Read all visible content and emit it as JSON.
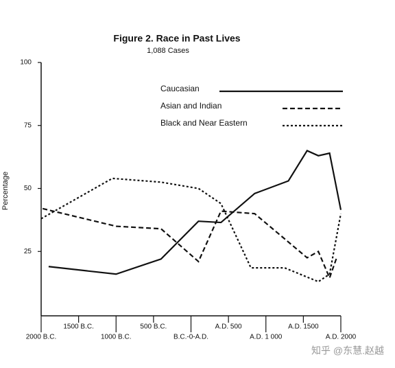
{
  "chart_data": {
    "type": "line",
    "title": "Figure 2.  Race in Past Lives",
    "subtitle": "1,088 Cases",
    "ylabel": "Percentage",
    "watermark": "知乎 @东慧.赵越",
    "xlim": [
      -2000,
      2000
    ],
    "xticks": [
      {
        "value": -2000,
        "label": "2000 B.C."
      },
      {
        "value": -1500,
        "label": "1500 B.C."
      },
      {
        "value": -1000,
        "label": "1000 B.C."
      },
      {
        "value": -500,
        "label": "500 B.C."
      },
      {
        "value": 0,
        "label": "B.C.-0-A.D."
      },
      {
        "value": 500,
        "label": "A.D. 500"
      },
      {
        "value": 1000,
        "label": "A.D. 1 000"
      },
      {
        "value": 1500,
        "label": "A.D. 1500"
      },
      {
        "value": 2000,
        "label": "A.D. 2000"
      }
    ],
    "ylim": [
      0,
      100
    ],
    "yticks": [
      25,
      50,
      75,
      100
    ],
    "legend": "upper right",
    "series": [
      {
        "name": "Caucasian",
        "color": "#111111",
        "style": "solid",
        "x": [
          -1900,
          -1000,
          -400,
          100,
          400,
          850,
          1300,
          1550,
          1700,
          1850,
          2000
        ],
        "values": [
          19,
          16,
          22,
          37,
          36.5,
          48,
          53,
          65,
          63,
          64,
          41.5
        ]
      },
      {
        "name": "Asian and Indian",
        "color": "#111111",
        "style": "dashed",
        "x": [
          -1980,
          -1000,
          -400,
          100,
          400,
          850,
          1550,
          1700,
          1850,
          1950
        ],
        "values": [
          42,
          35,
          34,
          21,
          41,
          40,
          22.5,
          25,
          14.5,
          23
        ]
      },
      {
        "name": "Black and Near Eastern",
        "color": "#111111",
        "style": "dotted",
        "x": [
          -2000,
          -1050,
          -400,
          100,
          400,
          800,
          1250,
          1700,
          1850,
          2000
        ],
        "values": [
          38,
          54,
          52.5,
          50,
          44,
          18.5,
          18.5,
          13,
          16,
          40
        ]
      }
    ]
  }
}
